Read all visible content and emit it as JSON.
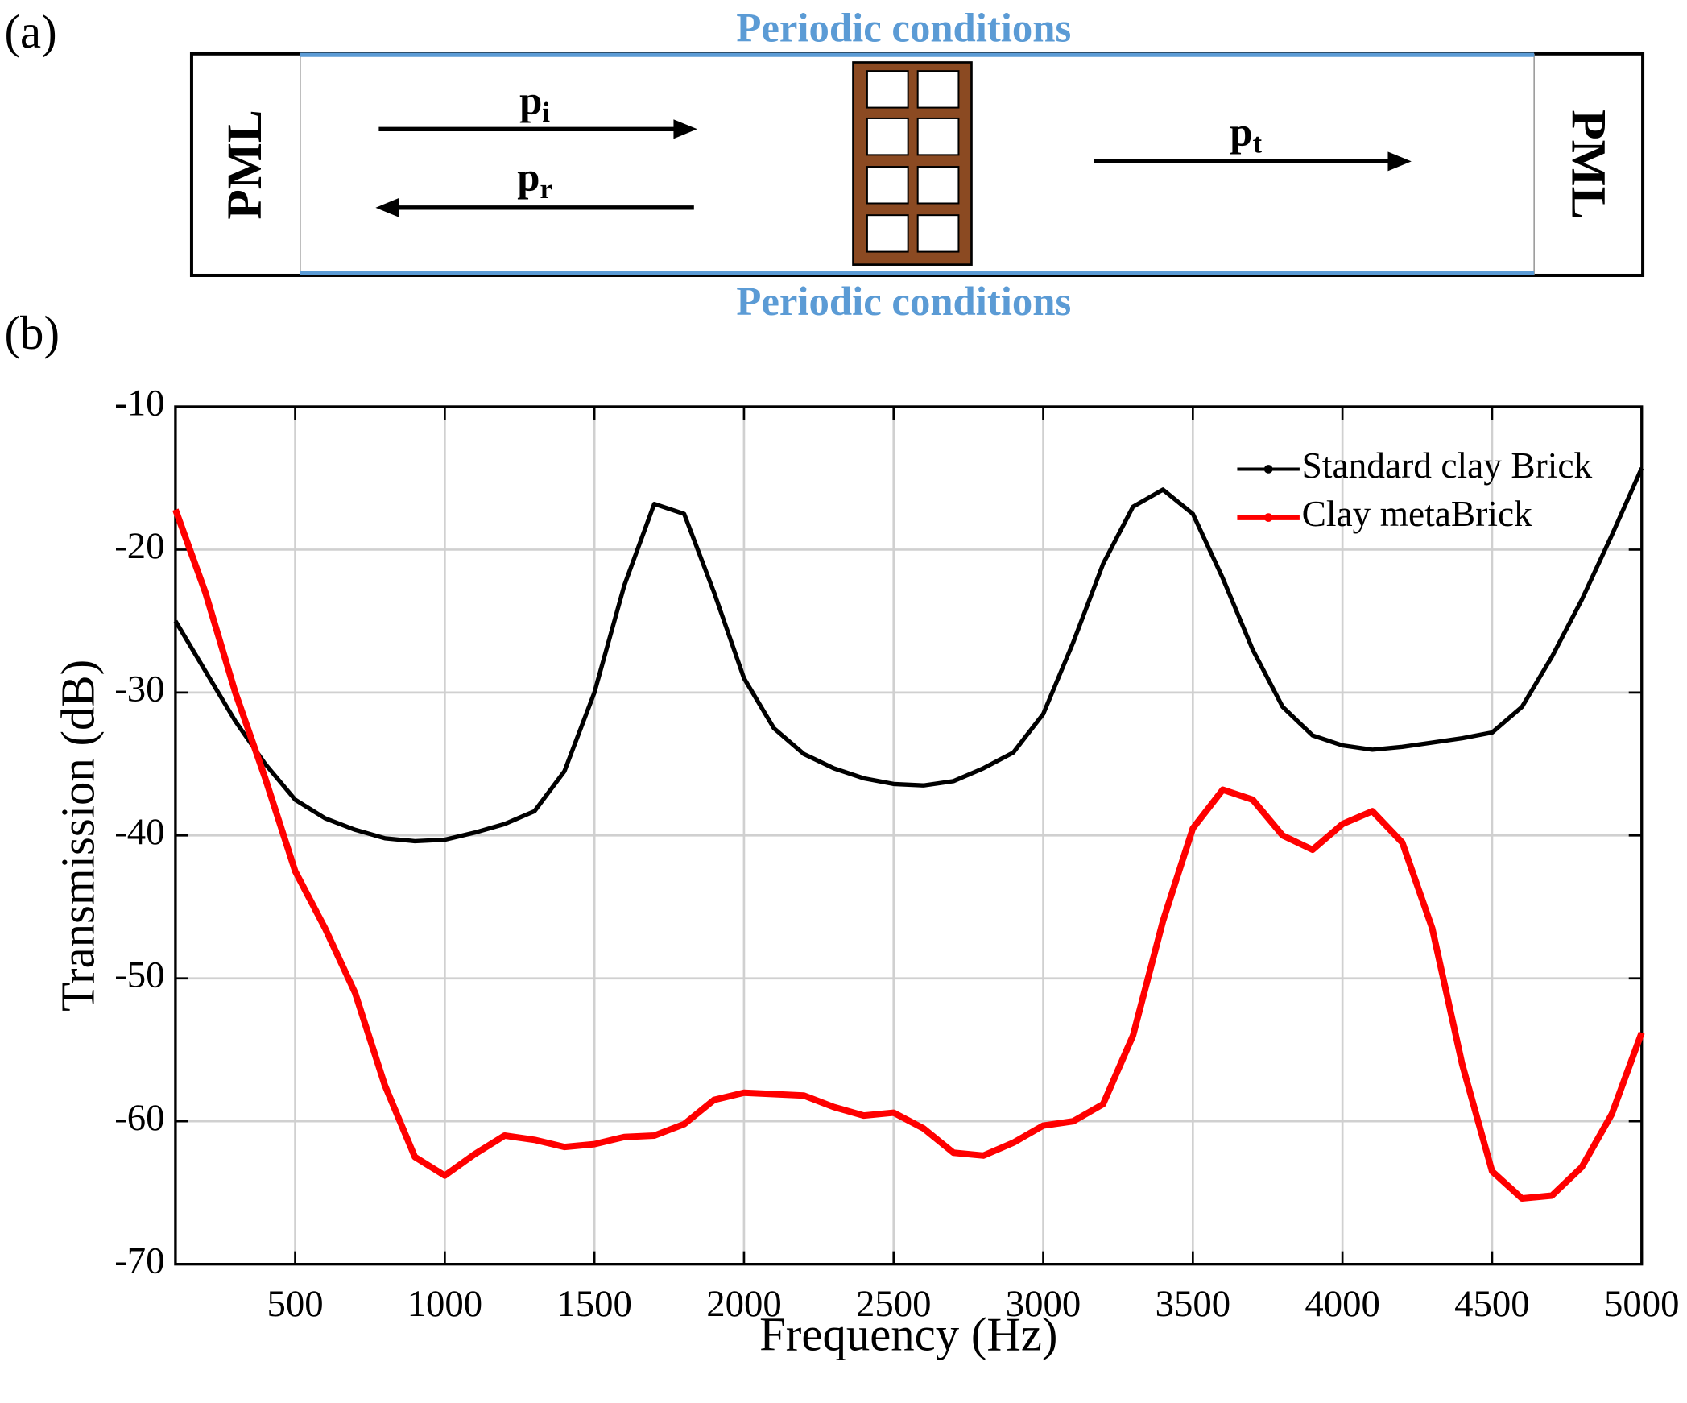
{
  "panel_labels": [
    "(a)",
    "(b)"
  ],
  "diagram": {
    "top_label": "Periodic conditions",
    "bottom_label": "Periodic conditions",
    "pml_left": "PML",
    "pml_right": "PML",
    "incident": {
      "base": "p",
      "sub": "i"
    },
    "reflected": {
      "base": "p",
      "sub": "r"
    },
    "transmitted": {
      "base": "p",
      "sub": "t"
    }
  },
  "chart_data": {
    "type": "line",
    "x_label": "Frequency (Hz)",
    "y_label": "Transmission (dB)",
    "xlim": [
      100,
      5000
    ],
    "ylim": [
      -70,
      -10
    ],
    "xticks": [
      500,
      1000,
      1500,
      2000,
      2500,
      3000,
      3500,
      4000,
      4500,
      5000
    ],
    "yticks": [
      -70,
      -60,
      -50,
      -40,
      -30,
      -20,
      -10
    ],
    "grid": true,
    "legend": "upper right",
    "x": [
      100,
      200,
      300,
      400,
      500,
      600,
      700,
      800,
      900,
      1000,
      1100,
      1200,
      1300,
      1400,
      1500,
      1600,
      1700,
      1800,
      1900,
      2000,
      2100,
      2200,
      2300,
      2400,
      2500,
      2600,
      2700,
      2800,
      2900,
      3000,
      3100,
      3200,
      3300,
      3400,
      3500,
      3600,
      3700,
      3800,
      3900,
      4000,
      4100,
      4200,
      4300,
      4400,
      4500,
      4600,
      4700,
      4800,
      4900,
      5000
    ],
    "series": [
      {
        "name": "Standard clay Brick",
        "color": "#000000",
        "values": [
          -25,
          -28.5,
          -32,
          -35,
          -37.5,
          -38.8,
          -39.6,
          -40.2,
          -40.4,
          -40.3,
          -39.8,
          -39.2,
          -38.3,
          -35.5,
          -30,
          -22.5,
          -16.8,
          -17.5,
          -23,
          -29,
          -32.5,
          -34.3,
          -35.3,
          -36,
          -36.4,
          -36.5,
          -36.2,
          -35.3,
          -34.2,
          -31.5,
          -26.5,
          -21,
          -17,
          -15.8,
          -17.5,
          -22,
          -27,
          -31,
          -33,
          -33.7,
          -34,
          -33.8,
          -33.5,
          -33.2,
          -32.8,
          -31,
          -27.5,
          -23.5,
          -19,
          -14.3
        ]
      },
      {
        "name": "Clay metaBrick",
        "color": "#ff0000",
        "values": [
          -17.2,
          -23,
          -30,
          -36,
          -42.5,
          -46.5,
          -51,
          -57.5,
          -62.5,
          -63.8,
          -62.3,
          -61,
          -61.3,
          -61.8,
          -61.6,
          -61.1,
          -61,
          -60.2,
          -58.5,
          -58,
          -58.1,
          -58.2,
          -59,
          -59.6,
          -59.4,
          -60.5,
          -62.2,
          -62.4,
          -61.5,
          -60.3,
          -60,
          -58.8,
          -54,
          -46,
          -39.5,
          -36.8,
          -37.5,
          -40,
          -41,
          -39.2,
          -38.3,
          -40.5,
          -46.5,
          -56,
          -63.5,
          -65.4,
          -65.2,
          -63.2,
          -59.5,
          -53.8
        ]
      }
    ]
  }
}
